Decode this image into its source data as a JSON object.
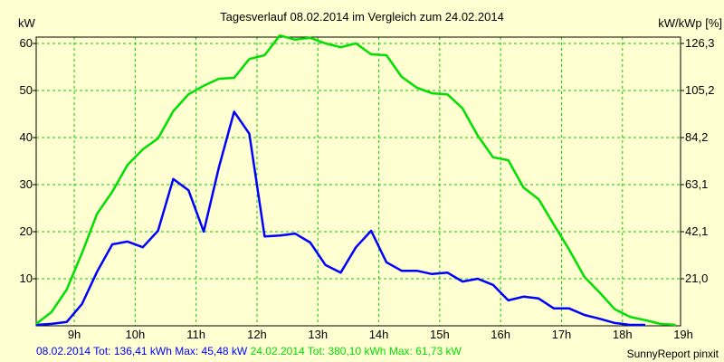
{
  "chart_data": {
    "type": "line",
    "title": "Tagesverlauf 08.02.2014 im Vergleich zum 24.02.2014",
    "ylabel": "kW",
    "ylabel_right": "kW/kWp [%]",
    "ylim": [
      0,
      61.6
    ],
    "xlim": [
      8.375,
      18.95
    ],
    "x_ticks": [
      9,
      10,
      11,
      12,
      13,
      14,
      15,
      16,
      17,
      18,
      19
    ],
    "x_tick_labels": [
      "9h",
      "10h",
      "11h",
      "12h",
      "13h",
      "14h",
      "15h",
      "16h",
      "17h",
      "18h",
      "19h"
    ],
    "y_ticks": [
      10,
      20,
      30,
      40,
      50,
      60
    ],
    "y_tick_labels": [
      "10",
      "20",
      "30",
      "40",
      "50",
      "60"
    ],
    "y_right_tick_labels": [
      "21,0",
      "42,1",
      "63,1",
      "84,2",
      "105,2",
      "126,3"
    ],
    "grid": true,
    "x_start": 8.375,
    "x_step": 0.25,
    "series": [
      {
        "name": "08.02.2014",
        "color": "#0000ff",
        "values": [
          0.2,
          0.4,
          0.8,
          4.6,
          11.5,
          17.3,
          17.9,
          16.7,
          20.2,
          31.2,
          28.8,
          20,
          33.7,
          45.5,
          40.8,
          19,
          19.2,
          19.6,
          17.7,
          12.9,
          11.3,
          16.7,
          20.2,
          13.5,
          11.7,
          11.7,
          11,
          11.3,
          9.4,
          10,
          8.7,
          5.4,
          6.2,
          5.8,
          3.7,
          3.7,
          2.3,
          1.5,
          0.6,
          0.2,
          0.2
        ]
      },
      {
        "name": "24.02.2014",
        "color": "#00e000",
        "values": [
          0.4,
          2.9,
          7.7,
          15.4,
          23.8,
          28.5,
          34.2,
          37.5,
          39.8,
          45.6,
          49.2,
          51,
          52.5,
          52.7,
          56.7,
          57.5,
          61.7,
          60.8,
          61.2,
          60,
          59.2,
          60,
          57.7,
          57.5,
          52.9,
          50.6,
          49.4,
          49.2,
          46.2,
          40.4,
          35.8,
          35.2,
          29.4,
          26.9,
          21.5,
          16.2,
          10.4,
          7.1,
          3.5,
          1.9,
          1.2,
          0.4,
          0.2
        ]
      }
    ],
    "legend": [
      {
        "text": "08.02.2014 Tot: 136,41 kWh Max: 45,48 kW",
        "color": "#0000ff"
      },
      {
        "text": "24.02.2014 Tot: 380,10 kWh Max: 61,73 kW",
        "color": "#00e000"
      }
    ],
    "credit": "SunnyReport pinxit"
  }
}
